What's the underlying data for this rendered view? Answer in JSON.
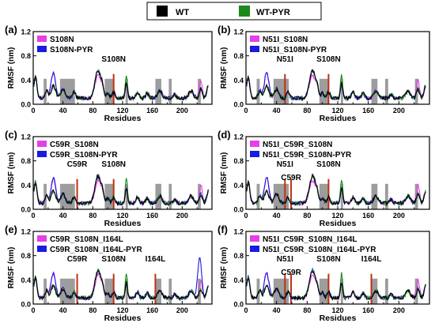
{
  "top_legend": [
    {
      "label": "WT",
      "color": "#000000"
    },
    {
      "label": "WT-PYR",
      "color": "#1a8a1a"
    }
  ],
  "colors": {
    "wt": "#000000",
    "wt_pyr": "#1a8a1a",
    "mutant": "#e83de8",
    "mutant_pyr": "#1a1ae0",
    "region": "#8c8c8c",
    "site_line": "#c03010"
  },
  "chart_data": [
    {
      "type": "line",
      "panel": "(a)",
      "xlabel": "Residues",
      "ylabel": "RMSF (nm)",
      "xlim": [
        0,
        240
      ],
      "ylim": [
        0,
        1.2
      ],
      "xticks": [
        0,
        20,
        40,
        60,
        80,
        100,
        120,
        140,
        160,
        180,
        200,
        220
      ],
      "xticklabels": [
        "0",
        "",
        "40",
        "",
        "80",
        "",
        "120",
        "",
        "160",
        "",
        "200",
        ""
      ],
      "yticks": [
        0,
        0.4,
        0.8,
        1.2
      ],
      "yticklabels": [
        "0.0",
        "0.4",
        "0.8",
        "1.2"
      ],
      "legend": [
        {
          "label": "S108N",
          "color": "#e83de8"
        },
        {
          "label": "S108N-PYR",
          "color": "#1a1ae0"
        }
      ],
      "legend_position": "top-left",
      "shaded_regions": [
        [
          14,
          18
        ],
        [
          36,
          56
        ],
        [
          96,
          108
        ],
        [
          124,
          127
        ],
        [
          164,
          172
        ],
        [
          182,
          186
        ],
        [
          221,
          225
        ]
      ],
      "annotations": [
        {
          "text": "S108N",
          "x": 108
        }
      ],
      "series_shapes": [
        "wt",
        "wt_pyr",
        "mut",
        "mut_pyr"
      ],
      "region_height": 0.42
    },
    {
      "type": "line",
      "panel": "(b)",
      "xlabel": "Residues",
      "ylabel": "RMSF (nm)",
      "xlim": [
        0,
        240
      ],
      "ylim": [
        0,
        1.2
      ],
      "xticks": [
        0,
        20,
        40,
        60,
        80,
        100,
        120,
        140,
        160,
        180,
        200,
        220
      ],
      "xticklabels": [
        "0",
        "",
        "40",
        "",
        "80",
        "",
        "120",
        "",
        "160",
        "",
        "200",
        ""
      ],
      "yticks": [
        0,
        0.4,
        0.8,
        1.2
      ],
      "yticklabels": [
        "0.0",
        "0.4",
        "0.8",
        "1.2"
      ],
      "legend": [
        {
          "label": "N51I_S108N",
          "color": "#e83de8"
        },
        {
          "label": "N51I_S108N-PYR",
          "color": "#1a1ae0"
        }
      ],
      "legend_position": "top-left",
      "shaded_regions": [
        [
          14,
          18
        ],
        [
          36,
          56
        ],
        [
          96,
          108
        ],
        [
          124,
          127
        ],
        [
          164,
          172
        ],
        [
          182,
          186
        ],
        [
          221,
          225
        ]
      ],
      "annotations": [
        {
          "text": "N51I",
          "x": 51
        },
        {
          "text": "S108N",
          "x": 108
        }
      ],
      "series_shapes": [
        "wt",
        "wt_pyr",
        "mut",
        "mut_pyr"
      ],
      "region_height": 0.42
    },
    {
      "type": "line",
      "panel": "(c)",
      "xlabel": "Residues",
      "ylabel": "RMSF (nm)",
      "xlim": [
        0,
        240
      ],
      "ylim": [
        0,
        1.2
      ],
      "xticks": [
        0,
        20,
        40,
        60,
        80,
        100,
        120,
        140,
        160,
        180,
        200,
        220
      ],
      "xticklabels": [
        "0",
        "",
        "40",
        "",
        "80",
        "",
        "120",
        "",
        "160",
        "",
        "200",
        ""
      ],
      "yticks": [
        0,
        0.4,
        0.8,
        1.2
      ],
      "yticklabels": [
        "0.0",
        "0.4",
        "0.8",
        "1.2"
      ],
      "legend": [
        {
          "label": "C59R_S108N",
          "color": "#e83de8"
        },
        {
          "label": "C59R_S108N-PYR",
          "color": "#1a1ae0"
        }
      ],
      "legend_position": "top-left",
      "shaded_regions": [
        [
          14,
          18
        ],
        [
          36,
          56
        ],
        [
          96,
          108
        ],
        [
          124,
          127
        ],
        [
          164,
          172
        ],
        [
          182,
          186
        ],
        [
          221,
          225
        ]
      ],
      "annotations": [
        {
          "text": "C59R",
          "x": 59
        },
        {
          "text": "S108N",
          "x": 108
        }
      ],
      "series_shapes": [
        "wt",
        "wt_pyr",
        "mut",
        "mut_pyr"
      ],
      "region_height": 0.42
    },
    {
      "type": "line",
      "panel": "(d)",
      "xlabel": "Residues",
      "ylabel": "RMSF (nm)",
      "xlim": [
        0,
        240
      ],
      "ylim": [
        0,
        1.2
      ],
      "xticks": [
        0,
        20,
        40,
        60,
        80,
        100,
        120,
        140,
        160,
        180,
        200,
        220
      ],
      "xticklabels": [
        "0",
        "",
        "40",
        "",
        "80",
        "",
        "120",
        "",
        "160",
        "",
        "200",
        ""
      ],
      "yticks": [
        0,
        0.4,
        0.8,
        1.2
      ],
      "yticklabels": [
        "0.0",
        "0.4",
        "0.8",
        "1.2"
      ],
      "legend": [
        {
          "label": "N51I_C59R_S108N",
          "color": "#e83de8"
        },
        {
          "label": "N51I_C59R_S108N-PYR",
          "color": "#1a1ae0"
        }
      ],
      "legend_position": "top-left",
      "shaded_regions": [
        [
          14,
          18
        ],
        [
          36,
          56
        ],
        [
          96,
          108
        ],
        [
          124,
          127
        ],
        [
          164,
          172
        ],
        [
          182,
          186
        ],
        [
          221,
          225
        ]
      ],
      "annotations": [
        {
          "text": "N51I",
          "x": 51
        },
        {
          "text": "C59R",
          "x": 59
        },
        {
          "text": "S108N",
          "x": 108
        }
      ],
      "series_shapes": [
        "wt",
        "wt_pyr",
        "mut",
        "mut_pyr"
      ],
      "region_height": 0.42
    },
    {
      "type": "line",
      "panel": "(e)",
      "xlabel": "Residues",
      "ylabel": "RMSF (nm)",
      "xlim": [
        0,
        240
      ],
      "ylim": [
        0,
        1.2
      ],
      "xticks": [
        0,
        20,
        40,
        60,
        80,
        100,
        120,
        140,
        160,
        180,
        200,
        220
      ],
      "xticklabels": [
        "0",
        "",
        "40",
        "",
        "80",
        "",
        "120",
        "",
        "160",
        "",
        "200",
        ""
      ],
      "yticks": [
        0,
        0.4,
        0.8,
        1.2
      ],
      "yticklabels": [
        "0.0",
        "0.4",
        "0.8",
        "1.2"
      ],
      "legend": [
        {
          "label": "C59R_S108N_I164L",
          "color": "#e83de8"
        },
        {
          "label": "C59R_S108N_I164L-PYR",
          "color": "#1a1ae0"
        }
      ],
      "legend_position": "top-left",
      "shaded_regions": [
        [
          14,
          18
        ],
        [
          36,
          56
        ],
        [
          96,
          108
        ],
        [
          124,
          127
        ],
        [
          164,
          172
        ],
        [
          182,
          186
        ],
        [
          221,
          225
        ]
      ],
      "annotations": [
        {
          "text": "C59R",
          "x": 59
        },
        {
          "text": "S108N",
          "x": 108
        },
        {
          "text": "I164L",
          "x": 164
        }
      ],
      "series_shapes": [
        "wt",
        "wt_pyr",
        "mut",
        "mut_pyr_e"
      ],
      "region_height": 0.42
    },
    {
      "type": "line",
      "panel": "(f)",
      "xlabel": "Residues",
      "ylabel": "RMSF (nm)",
      "xlim": [
        0,
        240
      ],
      "ylim": [
        0,
        1.2
      ],
      "xticks": [
        0,
        20,
        40,
        60,
        80,
        100,
        120,
        140,
        160,
        180,
        200,
        220
      ],
      "xticklabels": [
        "0",
        "",
        "40",
        "",
        "80",
        "",
        "120",
        "",
        "160",
        "",
        "200",
        ""
      ],
      "yticks": [
        0,
        0.4,
        0.8,
        1.2
      ],
      "yticklabels": [
        "0.0",
        "0.4",
        "0.8",
        "1.2"
      ],
      "legend": [
        {
          "label": "N51I_C59R_S108N_I164L",
          "color": "#e83de8"
        },
        {
          "label": "N51I_C59R_S108N_I164L-PYR",
          "color": "#1a1ae0"
        }
      ],
      "legend_position": "top-left",
      "shaded_regions": [
        [
          14,
          18
        ],
        [
          36,
          56
        ],
        [
          96,
          108
        ],
        [
          124,
          127
        ],
        [
          164,
          172
        ],
        [
          182,
          186
        ],
        [
          221,
          225
        ]
      ],
      "annotations": [
        {
          "text": "N51I",
          "x": 51
        },
        {
          "text": "C59R",
          "x": 59
        },
        {
          "text": "S108N",
          "x": 108
        },
        {
          "text": "I164L",
          "x": 164
        }
      ],
      "series_shapes": [
        "wt",
        "wt_pyr",
        "mut",
        "mut_pyr"
      ],
      "region_height": 0.42
    }
  ]
}
